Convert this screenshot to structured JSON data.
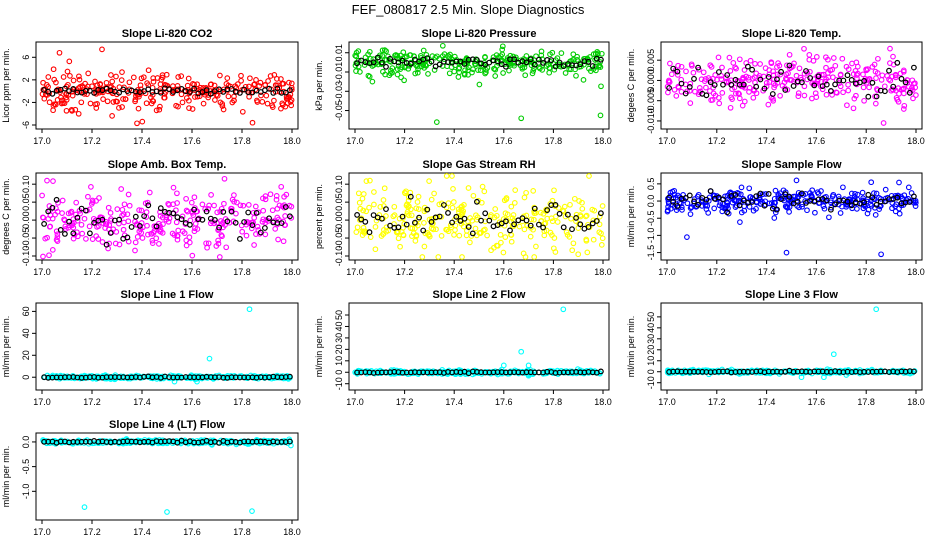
{
  "title": "FEF_080817  2.5 Min. Slope Diagnostics",
  "colors": {
    "ref": "#000000",
    "red": "#ff0000",
    "green": "#00cc00",
    "magenta": "#ff00ff",
    "yellow": "#ffff00",
    "blue": "#0000ff",
    "cyan": "#00ffff"
  },
  "chart_data": [
    {
      "type": "scatter",
      "title": "Slope Li-820 CO2",
      "ylabel": "Licor ppm per min.",
      "color": "red",
      "xlim": [
        17.0,
        18.0
      ],
      "ylim": [
        -6,
        8
      ],
      "xticks": [
        17.0,
        17.2,
        17.4,
        17.6,
        17.8,
        18.0
      ],
      "xticklabels": [
        "17.0",
        "17.2",
        "17.4",
        "17.6",
        "17.8",
        "18.0"
      ],
      "yticks": [
        -6,
        -2,
        2,
        6
      ],
      "yticklabels": [
        "-6",
        "-2",
        "2",
        "6"
      ],
      "yspread": 1.6,
      "refspread": 0.3,
      "outliers": [
        [
          17.07,
          6.8
        ],
        [
          17.24,
          7.4
        ],
        [
          17.38,
          -5.7
        ],
        [
          17.12,
          -3.5
        ]
      ]
    },
    {
      "type": "scatter",
      "title": "Slope Li-820 Pressure",
      "ylabel": "kPa per min.",
      "color": "green",
      "xlim": [
        17.0,
        18.0
      ],
      "ylim": [
        -0.065,
        0.017
      ],
      "xticks": [
        17.0,
        17.2,
        17.4,
        17.6,
        17.8,
        18.0
      ],
      "xticklabels": [
        "17.0",
        "17.2",
        "17.4",
        "17.6",
        "17.8",
        "18.0"
      ],
      "yticks": [
        -0.05,
        -0.03,
        -0.01,
        0.01
      ],
      "yticklabels": [
        "-0.05",
        "-0.03",
        "-0.01",
        "0.01"
      ],
      "yspread": 0.007,
      "refspread": 0.003,
      "outliers": [
        [
          17.33,
          -0.062
        ],
        [
          17.67,
          -0.058
        ],
        [
          17.99,
          -0.055
        ],
        [
          17.07,
          -0.02
        ]
      ]
    },
    {
      "type": "scatter",
      "title": "Slope Li-820 Temp.",
      "ylabel": "degees C per min.",
      "color": "magenta",
      "xlim": [
        17.0,
        18.0
      ],
      "ylim": [
        -0.011,
        0.0085
      ],
      "xticks": [
        17.0,
        17.2,
        17.4,
        17.6,
        17.8,
        18.0
      ],
      "xticklabels": [
        "17.0",
        "17.2",
        "17.4",
        "17.6",
        "17.8",
        "18.0"
      ],
      "yticks": [
        -0.01,
        -0.005,
        0.0,
        0.005
      ],
      "yticklabels": [
        "-0.010",
        "-0.005",
        "0.000",
        "0.005"
      ],
      "yspread": 0.003,
      "refspread": 0.002,
      "outliers": [
        [
          17.87,
          -0.0105
        ],
        [
          17.55,
          0.0078
        ]
      ]
    },
    {
      "type": "scatter",
      "title": "Slope Amb. Box Temp.",
      "ylabel": "degrees C per min.",
      "color": "magenta",
      "xlim": [
        17.0,
        18.0
      ],
      "ylim": [
        -0.1,
        0.12
      ],
      "xticks": [
        17.0,
        17.2,
        17.4,
        17.6,
        17.8,
        18.0
      ],
      "xticklabels": [
        "17.0",
        "17.2",
        "17.4",
        "17.6",
        "17.8",
        "18.0"
      ],
      "yticks": [
        -0.1,
        -0.05,
        0.0,
        0.05,
        0.1
      ],
      "yticklabels": [
        "-0.10",
        "-0.05",
        "0.00",
        "0.05",
        "0.10"
      ],
      "yspread": 0.042,
      "refspread": 0.025,
      "outliers": [
        [
          17.73,
          0.115
        ],
        [
          17.02,
          0.11
        ]
      ]
    },
    {
      "type": "scatter",
      "title": "Slope Gas Stream RH",
      "ylabel": "percent per min.",
      "color": "yellow",
      "xlim": [
        17.0,
        18.0
      ],
      "ylim": [
        -0.1,
        0.12
      ],
      "xticks": [
        17.0,
        17.2,
        17.4,
        17.6,
        17.8,
        18.0
      ],
      "xticklabels": [
        "17.0",
        "17.2",
        "17.4",
        "17.6",
        "17.8",
        "18.0"
      ],
      "yticks": [
        -0.1,
        -0.05,
        0.0,
        0.05,
        0.1
      ],
      "yticklabels": [
        "-0.10",
        "-0.05",
        "0.00",
        "0.05",
        "0.10"
      ],
      "yspread": 0.04,
      "refspread": 0.025,
      "outliers": [
        [
          17.06,
          0.11
        ],
        [
          17.9,
          -0.095
        ]
      ]
    },
    {
      "type": "scatter",
      "title": "Slope Sample Flow",
      "ylabel": "ml/min per min.",
      "color": "blue",
      "xlim": [
        17.0,
        18.0
      ],
      "ylim": [
        -1.6,
        0.7
      ],
      "xticks": [
        17.0,
        17.2,
        17.4,
        17.6,
        17.8,
        18.0
      ],
      "xticklabels": [
        "17.0",
        "17.2",
        "17.4",
        "17.6",
        "17.8",
        "18.0"
      ],
      "yticks": [
        -1.5,
        -1.0,
        -0.5,
        0.0,
        0.5
      ],
      "yticklabels": [
        "-1.5",
        "-1.0",
        "-0.5",
        "0.0",
        "0.5"
      ],
      "yspread": 0.17,
      "refspread": 0.12,
      "outliers": [
        [
          17.08,
          -1.05
        ],
        [
          17.48,
          -1.5
        ],
        [
          17.86,
          -1.55
        ],
        [
          17.52,
          0.6
        ],
        [
          17.82,
          0.55
        ]
      ]
    },
    {
      "type": "scatter",
      "title": "Slope Line 1 Flow",
      "ylabel": "ml/min per min.",
      "color": "cyan",
      "xlim": [
        17.0,
        18.0
      ],
      "ylim": [
        -8,
        64
      ],
      "xticks": [
        17.0,
        17.2,
        17.4,
        17.6,
        17.8,
        18.0
      ],
      "xticklabels": [
        "17.0",
        "17.2",
        "17.4",
        "17.6",
        "17.8",
        "18.0"
      ],
      "yticks": [
        0,
        20,
        40,
        60
      ],
      "yticklabels": [
        "0",
        "20",
        "40",
        "60"
      ],
      "yspread": 0.8,
      "refspread": 0.3,
      "outliers": [
        [
          17.83,
          62
        ],
        [
          17.67,
          17
        ],
        [
          17.62,
          -4
        ],
        [
          17.53,
          -4
        ]
      ]
    },
    {
      "type": "scatter",
      "title": "Slope Line 2 Flow",
      "ylabel": "ml/min per min.",
      "color": "cyan",
      "xlim": [
        17.0,
        18.0
      ],
      "ylim": [
        -12,
        57
      ],
      "xticks": [
        17.0,
        17.2,
        17.4,
        17.6,
        17.8,
        18.0
      ],
      "xticklabels": [
        "17.0",
        "17.2",
        "17.4",
        "17.6",
        "17.8",
        "18.0"
      ],
      "yticks": [
        -10,
        0,
        10,
        20,
        30,
        40,
        50
      ],
      "yticklabels": [
        "-10",
        "0",
        "10",
        "20",
        "30",
        "40",
        "50"
      ],
      "yspread": 0.9,
      "refspread": 0.3,
      "outliers": [
        [
          17.84,
          55
        ],
        [
          17.67,
          18
        ],
        [
          17.7,
          6
        ],
        [
          17.6,
          6
        ],
        [
          17.7,
          -3
        ]
      ]
    },
    {
      "type": "scatter",
      "title": "Slope Line 3 Flow",
      "ylabel": "ml/min per min.",
      "color": "cyan",
      "xlim": [
        17.0,
        18.0
      ],
      "ylim": [
        -13,
        59
      ],
      "xticks": [
        17.0,
        17.2,
        17.4,
        17.6,
        17.8,
        18.0
      ],
      "xticklabels": [
        "17.0",
        "17.2",
        "17.4",
        "17.6",
        "17.8",
        "18.0"
      ],
      "yticks": [
        -10,
        0,
        10,
        20,
        30,
        40,
        50
      ],
      "yticklabels": [
        "-10",
        "0",
        "10",
        "20",
        "30",
        "40",
        "50"
      ],
      "yspread": 0.8,
      "refspread": 0.3,
      "outliers": [
        [
          17.84,
          57
        ],
        [
          17.67,
          16
        ],
        [
          17.54,
          -5
        ],
        [
          17.63,
          -5
        ],
        [
          17.72,
          -3
        ]
      ]
    },
    {
      "type": "scatter",
      "title": "Slope Line 4 (LT) Flow",
      "ylabel": "ml/min per min.",
      "color": "cyan",
      "xlim": [
        17.0,
        18.0
      ],
      "ylim": [
        -1.5,
        0.1
      ],
      "xticks": [
        17.0,
        17.2,
        17.4,
        17.6,
        17.8,
        18.0
      ],
      "xticklabels": [
        "17.0",
        "17.2",
        "17.4",
        "17.6",
        "17.8",
        "18.0"
      ],
      "yticks": [
        -1.0,
        -0.5,
        0.0
      ],
      "yticklabels": [
        "-1.0",
        "-0.5",
        "0.0"
      ],
      "yspread": 0.02,
      "refspread": 0.01,
      "outliers": [
        [
          17.17,
          -1.32
        ],
        [
          17.5,
          -1.42
        ],
        [
          17.84,
          -1.4
        ],
        [
          17.68,
          -0.06
        ]
      ]
    }
  ]
}
